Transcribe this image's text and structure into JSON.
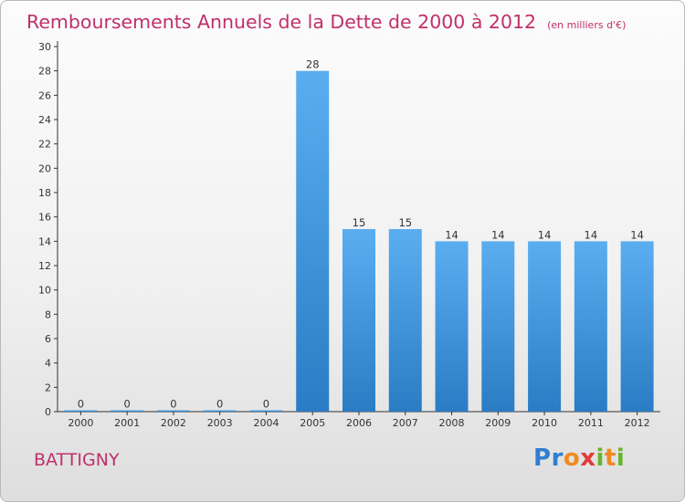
{
  "chart_data": {
    "type": "bar",
    "title": "Remboursements Annuels de la Dette de 2000 à 2012",
    "unit": "(en milliers d'€)",
    "categories": [
      "2000",
      "2001",
      "2002",
      "2003",
      "2004",
      "2005",
      "2006",
      "2007",
      "2008",
      "2009",
      "2010",
      "2011",
      "2012"
    ],
    "values": [
      0,
      0,
      0,
      0,
      0,
      28,
      15,
      15,
      14,
      14,
      14,
      14,
      14
    ],
    "ylim": [
      0,
      30
    ],
    "yticks": [
      0,
      2,
      4,
      6,
      8,
      10,
      12,
      14,
      16,
      18,
      20,
      22,
      24,
      26,
      28,
      30
    ],
    "grid": false,
    "bar_color": "#3a8fd6",
    "title_color": "#c0306a"
  },
  "commune": "BATTIGNY",
  "logo": {
    "letters": [
      "P",
      "r",
      "o",
      "x",
      "i",
      "t",
      "i"
    ],
    "colors": [
      "#2f7fd0",
      "#2f7fd0",
      "#f08a1f",
      "#e23b3b",
      "#6ab42d",
      "#f08a1f",
      "#6ab42d"
    ]
  }
}
